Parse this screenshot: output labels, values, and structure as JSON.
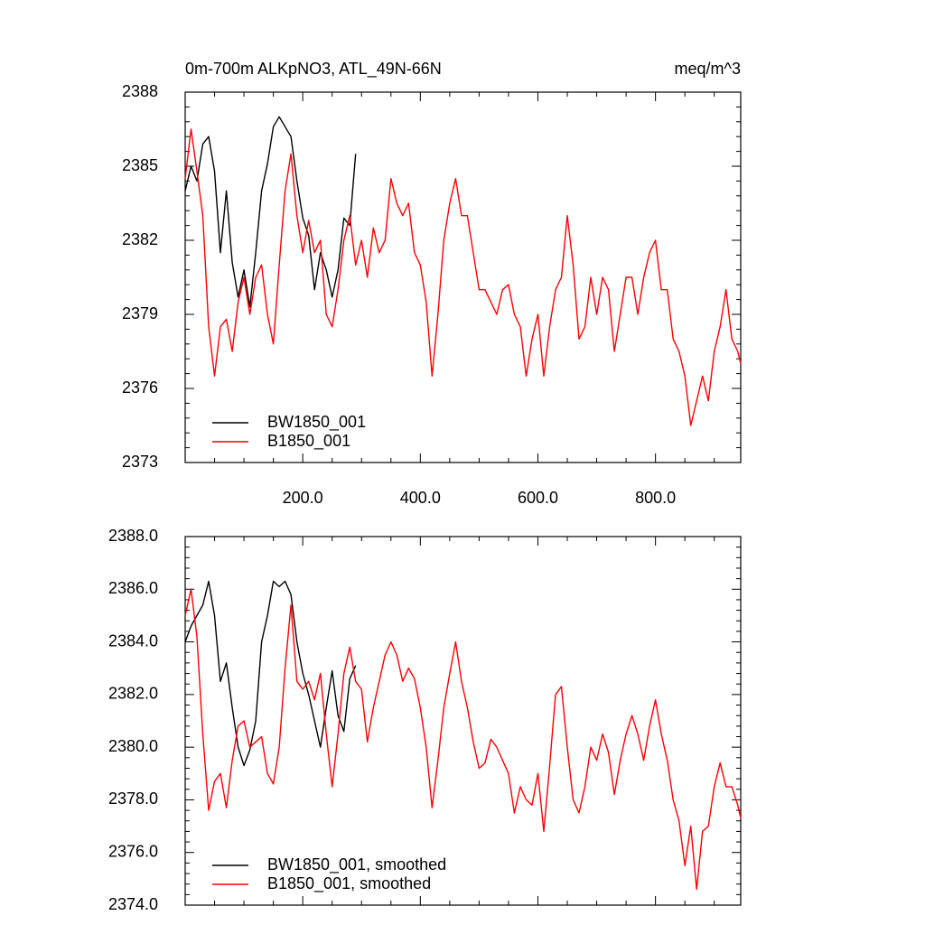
{
  "chart_data": [
    {
      "type": "line",
      "title": "0m-700m ALKpNO3, ATL_49N-66N",
      "units": "meq/m^3",
      "x": [
        0,
        10,
        20,
        30,
        40,
        50,
        60,
        70,
        80,
        90,
        100,
        110,
        120,
        130,
        140,
        150,
        160,
        170,
        180,
        190,
        200,
        210,
        220,
        230,
        240,
        250,
        260,
        270,
        280,
        290,
        300,
        310,
        320,
        330,
        340,
        350,
        360,
        370,
        380,
        390,
        400,
        410,
        420,
        430,
        440,
        450,
        460,
        470,
        480,
        490,
        500,
        510,
        520,
        530,
        540,
        550,
        560,
        570,
        580,
        590,
        600,
        610,
        620,
        630,
        640,
        650,
        660,
        670,
        680,
        690,
        700,
        710,
        720,
        730,
        740,
        750,
        760,
        770,
        780,
        790,
        800,
        810,
        820,
        830,
        840,
        850,
        860,
        870,
        880,
        890,
        900,
        910,
        920,
        930,
        940,
        945
      ],
      "series": [
        {
          "name": "BW1850_001",
          "color": "#000000",
          "values": [
            2384.0,
            2385.0,
            2384.4,
            2385.9,
            2386.2,
            2384.8,
            2381.5,
            2384.0,
            2381.1,
            2379.7,
            2380.8,
            2379.3,
            2381.5,
            2384.0,
            2385.1,
            2386.6,
            2387.0,
            2386.6,
            2386.2,
            2384.4,
            2382.9,
            2382.2,
            2380.0,
            2381.5,
            2380.8,
            2379.7,
            2380.8,
            2382.9,
            2382.6,
            2385.5,
            null,
            null,
            null,
            null,
            null,
            null,
            null,
            null,
            null,
            null,
            null,
            null,
            null,
            null,
            null,
            null,
            null,
            null,
            null,
            null,
            null,
            null,
            null,
            null,
            null,
            null,
            null,
            null,
            null,
            null,
            null,
            null,
            null,
            null,
            null,
            null,
            null,
            null,
            null,
            null,
            null,
            null,
            null,
            null,
            null,
            null,
            null,
            null,
            null,
            null,
            null,
            null,
            null,
            null,
            null,
            null,
            null,
            null,
            null,
            null,
            null,
            null,
            null,
            null,
            null,
            null
          ]
        },
        {
          "name": "B1850_001",
          "color": "#ff0000",
          "values": [
            2384.5,
            2386.5,
            2384.8,
            2383,
            2378.5,
            2376.5,
            2378.5,
            2378.8,
            2377.5,
            2379.5,
            2380.5,
            2379.0,
            2380.5,
            2381.0,
            2379.0,
            2377.8,
            2381,
            2384.0,
            2385.5,
            2383,
            2381.5,
            2382.8,
            2381.5,
            2382,
            2379,
            2378.5,
            2380,
            2382,
            2383,
            2381,
            2382,
            2380.5,
            2382.5,
            2381.5,
            2382,
            2384.5,
            2383.5,
            2383,
            2383.5,
            2381.5,
            2381,
            2379.5,
            2376.5,
            2379,
            2382,
            2383.5,
            2384.5,
            2383,
            2383,
            2381.5,
            2380,
            2380,
            2379.5,
            2379,
            2380,
            2380.2,
            2379,
            2378.5,
            2376.5,
            2378,
            2379,
            2376.5,
            2378.5,
            2380,
            2380.5,
            2383,
            2381,
            2378,
            2378.5,
            2380.5,
            2379,
            2380.5,
            2380,
            2377.5,
            2379,
            2380.5,
            2380.5,
            2379,
            2380.5,
            2381.5,
            2382,
            2380,
            2380,
            2378,
            2377.5,
            2376.5,
            2374.5,
            2375.5,
            2376.5,
            2375.5,
            2377.5,
            2378.5,
            2380,
            2378,
            2377.5,
            2377
          ]
        }
      ],
      "xlim": [
        0,
        945
      ],
      "xticks": [
        {
          "value": 200,
          "label": "200.0"
        },
        {
          "value": 400,
          "label": "400.0"
        },
        {
          "value": 600,
          "label": "600.0"
        },
        {
          "value": 800,
          "label": "800.0"
        }
      ],
      "ylim": [
        2373,
        2388
      ],
      "yticks": [
        2373,
        2376,
        2379,
        2382,
        2385,
        2388
      ],
      "legend": "lower left"
    },
    {
      "type": "line",
      "x": [
        0,
        10,
        20,
        30,
        40,
        50,
        60,
        70,
        80,
        90,
        100,
        110,
        120,
        130,
        140,
        150,
        160,
        170,
        180,
        190,
        200,
        210,
        220,
        230,
        240,
        250,
        260,
        270,
        280,
        290,
        300,
        310,
        320,
        330,
        340,
        350,
        360,
        370,
        380,
        390,
        400,
        410,
        420,
        430,
        440,
        450,
        460,
        470,
        480,
        490,
        500,
        510,
        520,
        530,
        540,
        550,
        560,
        570,
        580,
        590,
        600,
        610,
        620,
        630,
        640,
        650,
        660,
        670,
        680,
        690,
        700,
        710,
        720,
        730,
        740,
        750,
        760,
        770,
        780,
        790,
        800,
        810,
        820,
        830,
        840,
        850,
        860,
        870,
        880,
        890,
        900,
        910,
        920,
        930,
        940,
        945
      ],
      "series": [
        {
          "name": "BW1850_001, smoothed",
          "color": "#000000",
          "values": [
            2384.0,
            2384.6,
            2385.0,
            2385.4,
            2386.3,
            2385.0,
            2382.5,
            2383.2,
            2381.5,
            2380.0,
            2379.3,
            2379.9,
            2381.0,
            2384.0,
            2385.0,
            2386.3,
            2386.1,
            2386.3,
            2385.8,
            2384.0,
            2382.8,
            2382.0,
            2381.0,
            2380.0,
            2381.5,
            2382.9,
            2381.2,
            2380.6,
            2382.6,
            2383.1,
            null,
            null,
            null,
            null,
            null,
            null,
            null,
            null,
            null,
            null,
            null,
            null,
            null,
            null,
            null,
            null,
            null,
            null,
            null,
            null,
            null,
            null,
            null,
            null,
            null,
            null,
            null,
            null,
            null,
            null,
            null,
            null,
            null,
            null,
            null,
            null,
            null,
            null,
            null,
            null,
            null,
            null,
            null,
            null,
            null,
            null,
            null,
            null,
            null,
            null,
            null,
            null,
            null,
            null,
            null,
            null,
            null,
            null,
            null,
            null,
            null,
            null,
            null,
            null,
            null,
            null
          ]
        },
        {
          "name": "B1850_001, smoothed",
          "color": "#ff0000",
          "values": [
            2385.0,
            2386.0,
            2384.2,
            2380.5,
            2377.6,
            2378.7,
            2379.0,
            2377.7,
            2379.5,
            2380.8,
            2381.0,
            2380.0,
            2380.2,
            2380.4,
            2379.0,
            2378.6,
            2380.0,
            2383.0,
            2385.4,
            2382.5,
            2382.2,
            2382.5,
            2381.8,
            2382.8,
            2380.5,
            2378.5,
            2380.5,
            2382.8,
            2383.8,
            2382.5,
            2382.2,
            2380.2,
            2381.5,
            2382.5,
            2383.5,
            2384.0,
            2383.5,
            2382.5,
            2383.0,
            2382.6,
            2381.5,
            2380.0,
            2377.7,
            2379.5,
            2381.5,
            2382.8,
            2384.0,
            2382.5,
            2381.5,
            2380.2,
            2379.2,
            2379.4,
            2380.3,
            2380.0,
            2379.5,
            2379.0,
            2377.5,
            2378.5,
            2378.0,
            2377.8,
            2379.0,
            2376.8,
            2379.3,
            2382.0,
            2382.3,
            2380.0,
            2378.0,
            2377.5,
            2378.5,
            2380.0,
            2379.5,
            2380.5,
            2379.8,
            2378.2,
            2379.5,
            2380.5,
            2381.2,
            2380.5,
            2379.5,
            2380.8,
            2381.8,
            2380.5,
            2379.5,
            2378.0,
            2377.2,
            2375.5,
            2377.0,
            2374.6,
            2376.8,
            2377.0,
            2378.5,
            2379.4,
            2378.5,
            2378.5,
            2377.8,
            2377.3
          ]
        }
      ],
      "xlim": [
        0,
        945
      ],
      "xticks": [
        200,
        400,
        600,
        800
      ],
      "ylim": [
        2374,
        2388
      ],
      "yticks": [
        {
          "value": 2374,
          "label": "2374.0"
        },
        {
          "value": 2376,
          "label": "2376.0"
        },
        {
          "value": 2378,
          "label": "2378.0"
        },
        {
          "value": 2380,
          "label": "2380.0"
        },
        {
          "value": 2382,
          "label": "2382.0"
        },
        {
          "value": 2384,
          "label": "2384.0"
        },
        {
          "value": 2386,
          "label": "2386.0"
        },
        {
          "value": 2388,
          "label": "2388.0"
        }
      ],
      "legend": "lower left"
    }
  ]
}
